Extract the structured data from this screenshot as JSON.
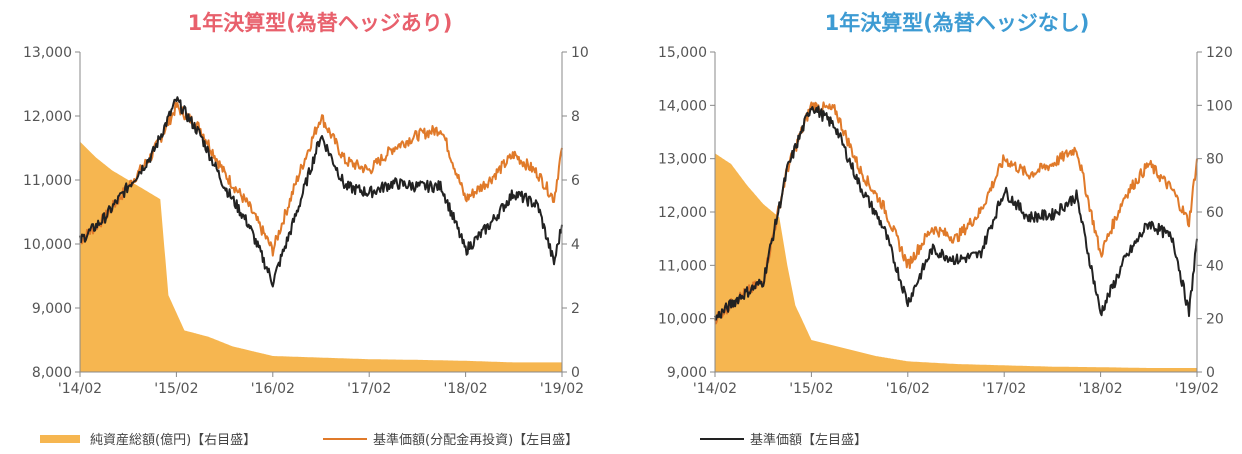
{
  "colors": {
    "net_assets": "#f6b650",
    "nav_reinvested": "#e07a2a",
    "nav": "#222222",
    "axis": "#888888",
    "title_left": "#e8606c",
    "title_right": "#3d9bd3"
  },
  "legend": [
    {
      "label": "純資産総額(億円)【右目盛】",
      "color_key": "net_assets",
      "kind": "band"
    },
    {
      "label": "基準価額(分配金再投資)【左目盛】",
      "color_key": "nav_reinvested",
      "kind": "line"
    },
    {
      "label": "基準価額【左目盛】",
      "color_key": "nav",
      "kind": "line"
    }
  ],
  "chart_data": [
    {
      "type": "line",
      "title": "1年決算型(為替ヘッジあり)",
      "x_tick_labels": [
        "'14/02",
        "'15/02",
        "'16/02",
        "'17/02",
        "'18/02",
        "'19/02"
      ],
      "x_range": [
        "2014-02",
        "2019-02"
      ],
      "y_left": {
        "range": [
          8000,
          13000
        ],
        "ticks": [
          8000,
          9000,
          10000,
          11000,
          12000,
          13000
        ],
        "tick_labels": [
          "8,000",
          "9,000",
          "10,000",
          "11,000",
          "12,000",
          "13,000"
        ]
      },
      "y_right": {
        "range": [
          0,
          10
        ],
        "ticks": [
          0,
          2,
          4,
          6,
          8,
          10
        ],
        "tick_labels": [
          "0",
          "2",
          "4",
          "6",
          "8",
          "10"
        ]
      },
      "series": [
        {
          "name": "純資産総額(億円)【右目盛】",
          "kind": "area",
          "axis": "right",
          "x": [
            "2014-02",
            "2014-04",
            "2014-06",
            "2014-08",
            "2014-10",
            "2014-12",
            "2015-01",
            "2015-03",
            "2015-06",
            "2015-09",
            "2016-02",
            "2016-08",
            "2017-02",
            "2017-08",
            "2018-02",
            "2018-08",
            "2019-02"
          ],
          "values": [
            7.2,
            6.7,
            6.3,
            6.0,
            5.7,
            5.4,
            2.4,
            1.3,
            1.1,
            0.8,
            0.5,
            0.45,
            0.4,
            0.38,
            0.35,
            0.3,
            0.3
          ]
        },
        {
          "name": "基準価額(分配金再投資)【左目盛】",
          "kind": "line",
          "axis": "left",
          "x": [
            "2014-02",
            "2014-05",
            "2014-08",
            "2014-11",
            "2015-02",
            "2015-05",
            "2015-08",
            "2015-11",
            "2016-02",
            "2016-05",
            "2016-08",
            "2016-11",
            "2017-02",
            "2017-05",
            "2017-08",
            "2017-11",
            "2018-02",
            "2018-05",
            "2018-08",
            "2018-11",
            "2019-01",
            "2019-02"
          ],
          "values": [
            10050,
            10400,
            10900,
            11400,
            12150,
            11800,
            11100,
            10600,
            9900,
            11000,
            12000,
            11300,
            11150,
            11500,
            11700,
            11800,
            10700,
            11000,
            11400,
            11100,
            10700,
            11500
          ]
        },
        {
          "name": "基準価額【左目盛】",
          "kind": "line",
          "axis": "left",
          "x": [
            "2014-02",
            "2014-05",
            "2014-08",
            "2014-11",
            "2015-02",
            "2015-05",
            "2015-08",
            "2015-11",
            "2016-02",
            "2016-05",
            "2016-08",
            "2016-11",
            "2017-02",
            "2017-05",
            "2017-08",
            "2017-11",
            "2018-02",
            "2018-05",
            "2018-08",
            "2018-11",
            "2019-01",
            "2019-02"
          ],
          "values": [
            10050,
            10400,
            10900,
            11400,
            12250,
            11700,
            10900,
            10300,
            9400,
            10500,
            11700,
            10900,
            10800,
            10950,
            10900,
            10900,
            9900,
            10300,
            10800,
            10600,
            9700,
            10300
          ]
        }
      ]
    },
    {
      "type": "line",
      "title": "1年決算型(為替ヘッジなし)",
      "x_tick_labels": [
        "'14/02",
        "'15/02",
        "'16/02",
        "'17/02",
        "'18/02",
        "'19/02"
      ],
      "x_range": [
        "2014-02",
        "2019-02"
      ],
      "y_left": {
        "range": [
          9000,
          15000
        ],
        "ticks": [
          9000,
          10000,
          11000,
          12000,
          13000,
          14000,
          15000
        ],
        "tick_labels": [
          "9,000",
          "10,000",
          "11,000",
          "12,000",
          "13,000",
          "14,000",
          "15,000"
        ]
      },
      "y_right": {
        "range": [
          0,
          120
        ],
        "ticks": [
          0,
          20,
          40,
          60,
          80,
          100,
          120
        ],
        "tick_labels": [
          "0",
          "20",
          "40",
          "60",
          "80",
          "100",
          "120"
        ]
      },
      "series": [
        {
          "name": "純資産総額(億円)【右目盛】",
          "kind": "area",
          "axis": "right",
          "x": [
            "2014-02",
            "2014-04",
            "2014-06",
            "2014-08",
            "2014-10",
            "2014-11",
            "2014-12",
            "2015-02",
            "2015-06",
            "2015-10",
            "2016-02",
            "2016-08",
            "2017-02",
            "2017-08",
            "2018-02",
            "2018-08",
            "2019-02"
          ],
          "values": [
            82,
            78,
            70,
            63,
            58,
            40,
            25,
            12,
            9,
            6,
            4,
            3,
            2.5,
            2,
            1.8,
            1.5,
            1.5
          ]
        },
        {
          "name": "基準価額(分配金再投資)【左目盛】",
          "kind": "line",
          "axis": "left",
          "x": [
            "2014-02",
            "2014-05",
            "2014-08",
            "2014-11",
            "2015-02",
            "2015-05",
            "2015-08",
            "2015-11",
            "2016-02",
            "2016-05",
            "2016-08",
            "2016-11",
            "2017-02",
            "2017-05",
            "2017-08",
            "2017-11",
            "2018-02",
            "2018-05",
            "2018-08",
            "2018-11",
            "2019-01",
            "2019-02"
          ],
          "values": [
            10000,
            10400,
            10700,
            12800,
            14000,
            13900,
            12800,
            12100,
            11000,
            11700,
            11500,
            12000,
            13000,
            12700,
            12900,
            13200,
            11200,
            12300,
            12900,
            12400,
            11800,
            13000
          ]
        },
        {
          "name": "基準価額【左目盛】",
          "kind": "line",
          "axis": "left",
          "x": [
            "2014-02",
            "2014-05",
            "2014-08",
            "2014-11",
            "2015-02",
            "2015-05",
            "2015-08",
            "2015-11",
            "2016-02",
            "2016-05",
            "2016-08",
            "2016-11",
            "2017-02",
            "2017-05",
            "2017-08",
            "2017-11",
            "2018-02",
            "2018-05",
            "2018-08",
            "2018-11",
            "2019-01",
            "2019-02"
          ],
          "values": [
            10000,
            10400,
            10700,
            12800,
            14000,
            13600,
            12500,
            11700,
            10300,
            11300,
            11100,
            11200,
            12400,
            11900,
            11950,
            12300,
            10100,
            11100,
            11800,
            11500,
            10100,
            11500
          ]
        }
      ]
    }
  ]
}
